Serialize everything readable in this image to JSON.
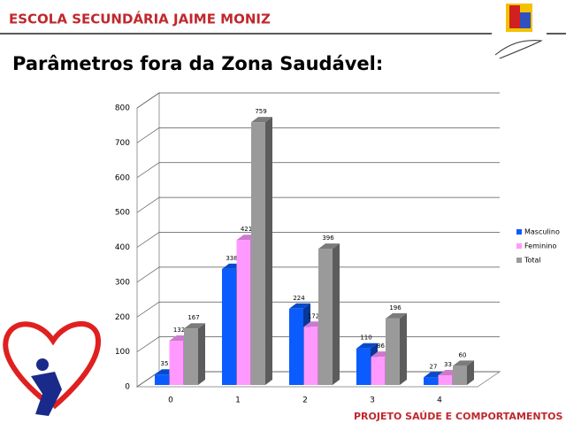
{
  "header": "ESCOLA SECUNDÁRIA JAIME MONIZ",
  "footer": "PROJETO SAÚDE E COMPORTAMENTOS DE RISCO",
  "chart_data": {
    "type": "bar",
    "title": "Parâmetros fora da Zona Saudável:",
    "categories": [
      "0",
      "1",
      "2",
      "3",
      "4"
    ],
    "series": [
      {
        "name": "Masculino",
        "color": "#0a5cff",
        "values": [
          35,
          338,
          224,
          110,
          27
        ]
      },
      {
        "name": "Feminino",
        "color": "#ff99ff",
        "values": [
          132,
          421,
          172,
          86,
          33
        ]
      },
      {
        "name": "Total",
        "color": "#9a9a9a",
        "values": [
          167,
          759,
          396,
          196,
          60
        ]
      }
    ],
    "ylim": [
      0,
      800
    ],
    "yticks": [
      0,
      100,
      200,
      300,
      400,
      500,
      600,
      700,
      800
    ],
    "grid": true,
    "legend": "right"
  }
}
